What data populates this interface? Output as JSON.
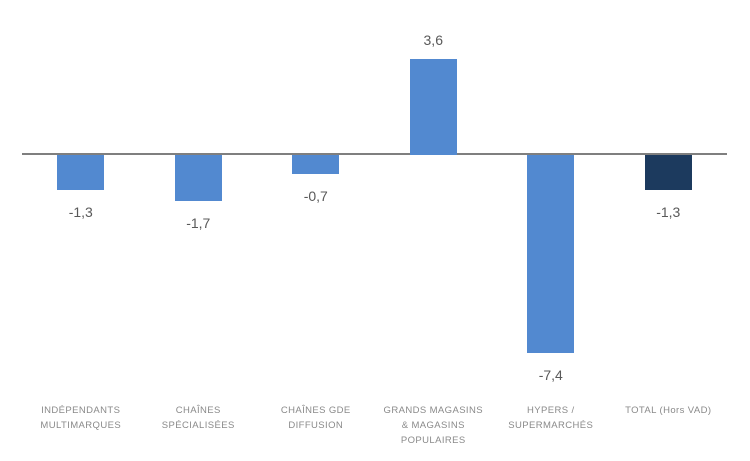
{
  "chart_data": {
    "type": "bar",
    "title": "",
    "xlabel": "",
    "ylabel": "",
    "ylim": [
      -8.5,
      5.5
    ],
    "grid": false,
    "legend": "none",
    "categories": [
      "INDÉPENDANTS MULTIMARQUES",
      "CHAÎNES SPÉCIALISÉES",
      "CHAÎNES GDE DIFFUSION",
      "GRANDS MAGASINS & MAGASINS POPULAIRES",
      "HYPERS / SUPERMARCHÉS",
      "TOTAL (Hors VAD)"
    ],
    "category_label_lines": [
      [
        "INDÉPENDANTS",
        "MULTIMARQUES"
      ],
      [
        "CHAÎNES",
        "SPÉCIALISÉES"
      ],
      [
        "CHAÎNES GDE",
        "DIFFUSION"
      ],
      [
        "GRANDS MAGASINS",
        "& MAGASINS",
        "POPULAIRES"
      ],
      [
        "HYPERS /",
        "SUPERMARCHÉS"
      ],
      [
        "TOTAL (Hors VAD)"
      ]
    ],
    "values": [
      -1.3,
      -1.7,
      -0.7,
      3.6,
      -7.4,
      -1.3
    ],
    "value_labels": [
      "-1,3",
      "-1,7",
      "-0,7",
      "3,6",
      "-7,4",
      "-1,3"
    ],
    "bar_colors": [
      "#5289d0",
      "#5289d0",
      "#5289d0",
      "#5289d0",
      "#5289d0",
      "#1c3a5e"
    ],
    "colors": {
      "bar_default": "#5289d0",
      "bar_total": "#1c3a5e",
      "axis_line": "#7f7f7f",
      "value_label": "#595959",
      "category_label": "#8a8a8a",
      "background": "#ffffff"
    }
  }
}
